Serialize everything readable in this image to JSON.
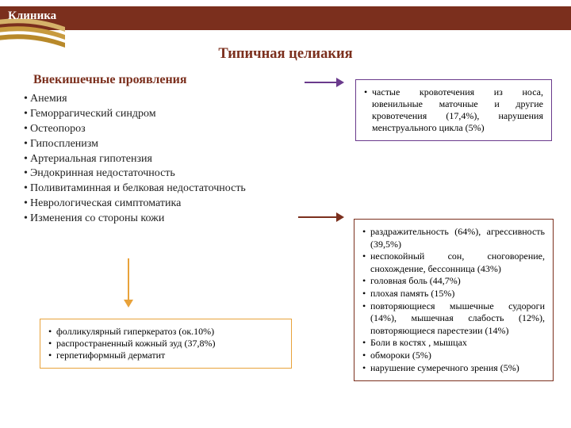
{
  "header": {
    "title": "Клиника",
    "bar_color": "#7b2f1d",
    "title_color": "#ffffff",
    "title_fontsize": 15,
    "swoosh_colors": [
      "#d5b26a",
      "#c79a3f",
      "#b8892a"
    ]
  },
  "title": {
    "text": "Типичная целиакия",
    "color": "#7b2f1d",
    "fontsize": 18.5
  },
  "subheading": {
    "text": "Внекишечные проявления",
    "color": "#7b2f1d",
    "fontsize": 16
  },
  "bullets": {
    "color": "#222222",
    "fontsize": 14,
    "items": [
      "Анемия",
      "Геморрагический синдром",
      "Остеопороз",
      "Гипоспленизм",
      "Артериальная гипотензия",
      "Эндокринная недостаточность",
      "Поливитаминная и белковая недостаточность",
      "Неврологическая симптоматика",
      "Изменения со стороны кожи"
    ]
  },
  "arrows": {
    "purple": {
      "color": "#6a3a8c",
      "length": 50,
      "direction": "right"
    },
    "orange": {
      "color": "#e8a23a",
      "length": 62,
      "direction": "down"
    },
    "brown": {
      "color": "#7b2f1d",
      "length": 58,
      "direction": "right"
    }
  },
  "boxes": {
    "purple": {
      "border_color": "#6a3a8c",
      "fontsize": 12,
      "items": [
        "частые кровотечения из носа, ювенильные маточные и другие кровотечения (17,4%), нарушения менструального цикла (5%)"
      ]
    },
    "orange": {
      "border_color": "#e8a23a",
      "fontsize": 12,
      "items": [
        "фолликулярный гиперкератоз (ок.10%)",
        "распространенный кожный зуд (37,8%)",
        "герпетиформный дерматит"
      ]
    },
    "brown": {
      "border_color": "#7b2f1d",
      "fontsize": 12,
      "items": [
        "раздражительность (64%), агрессивность (39,5%)",
        "неспокойный сон, сноговорение, снохождение, бессонница (43%)",
        "головная боль (44,7%)",
        "плохая память (15%)",
        "повторяющиеся мышечные судороги (14%), мышечная слабость (12%), повторяющиеся парестезии (14%)",
        "Боли в костях , мышцах",
        "обмороки (5%)",
        "нарушение сумеречного зрения (5%)"
      ]
    }
  }
}
